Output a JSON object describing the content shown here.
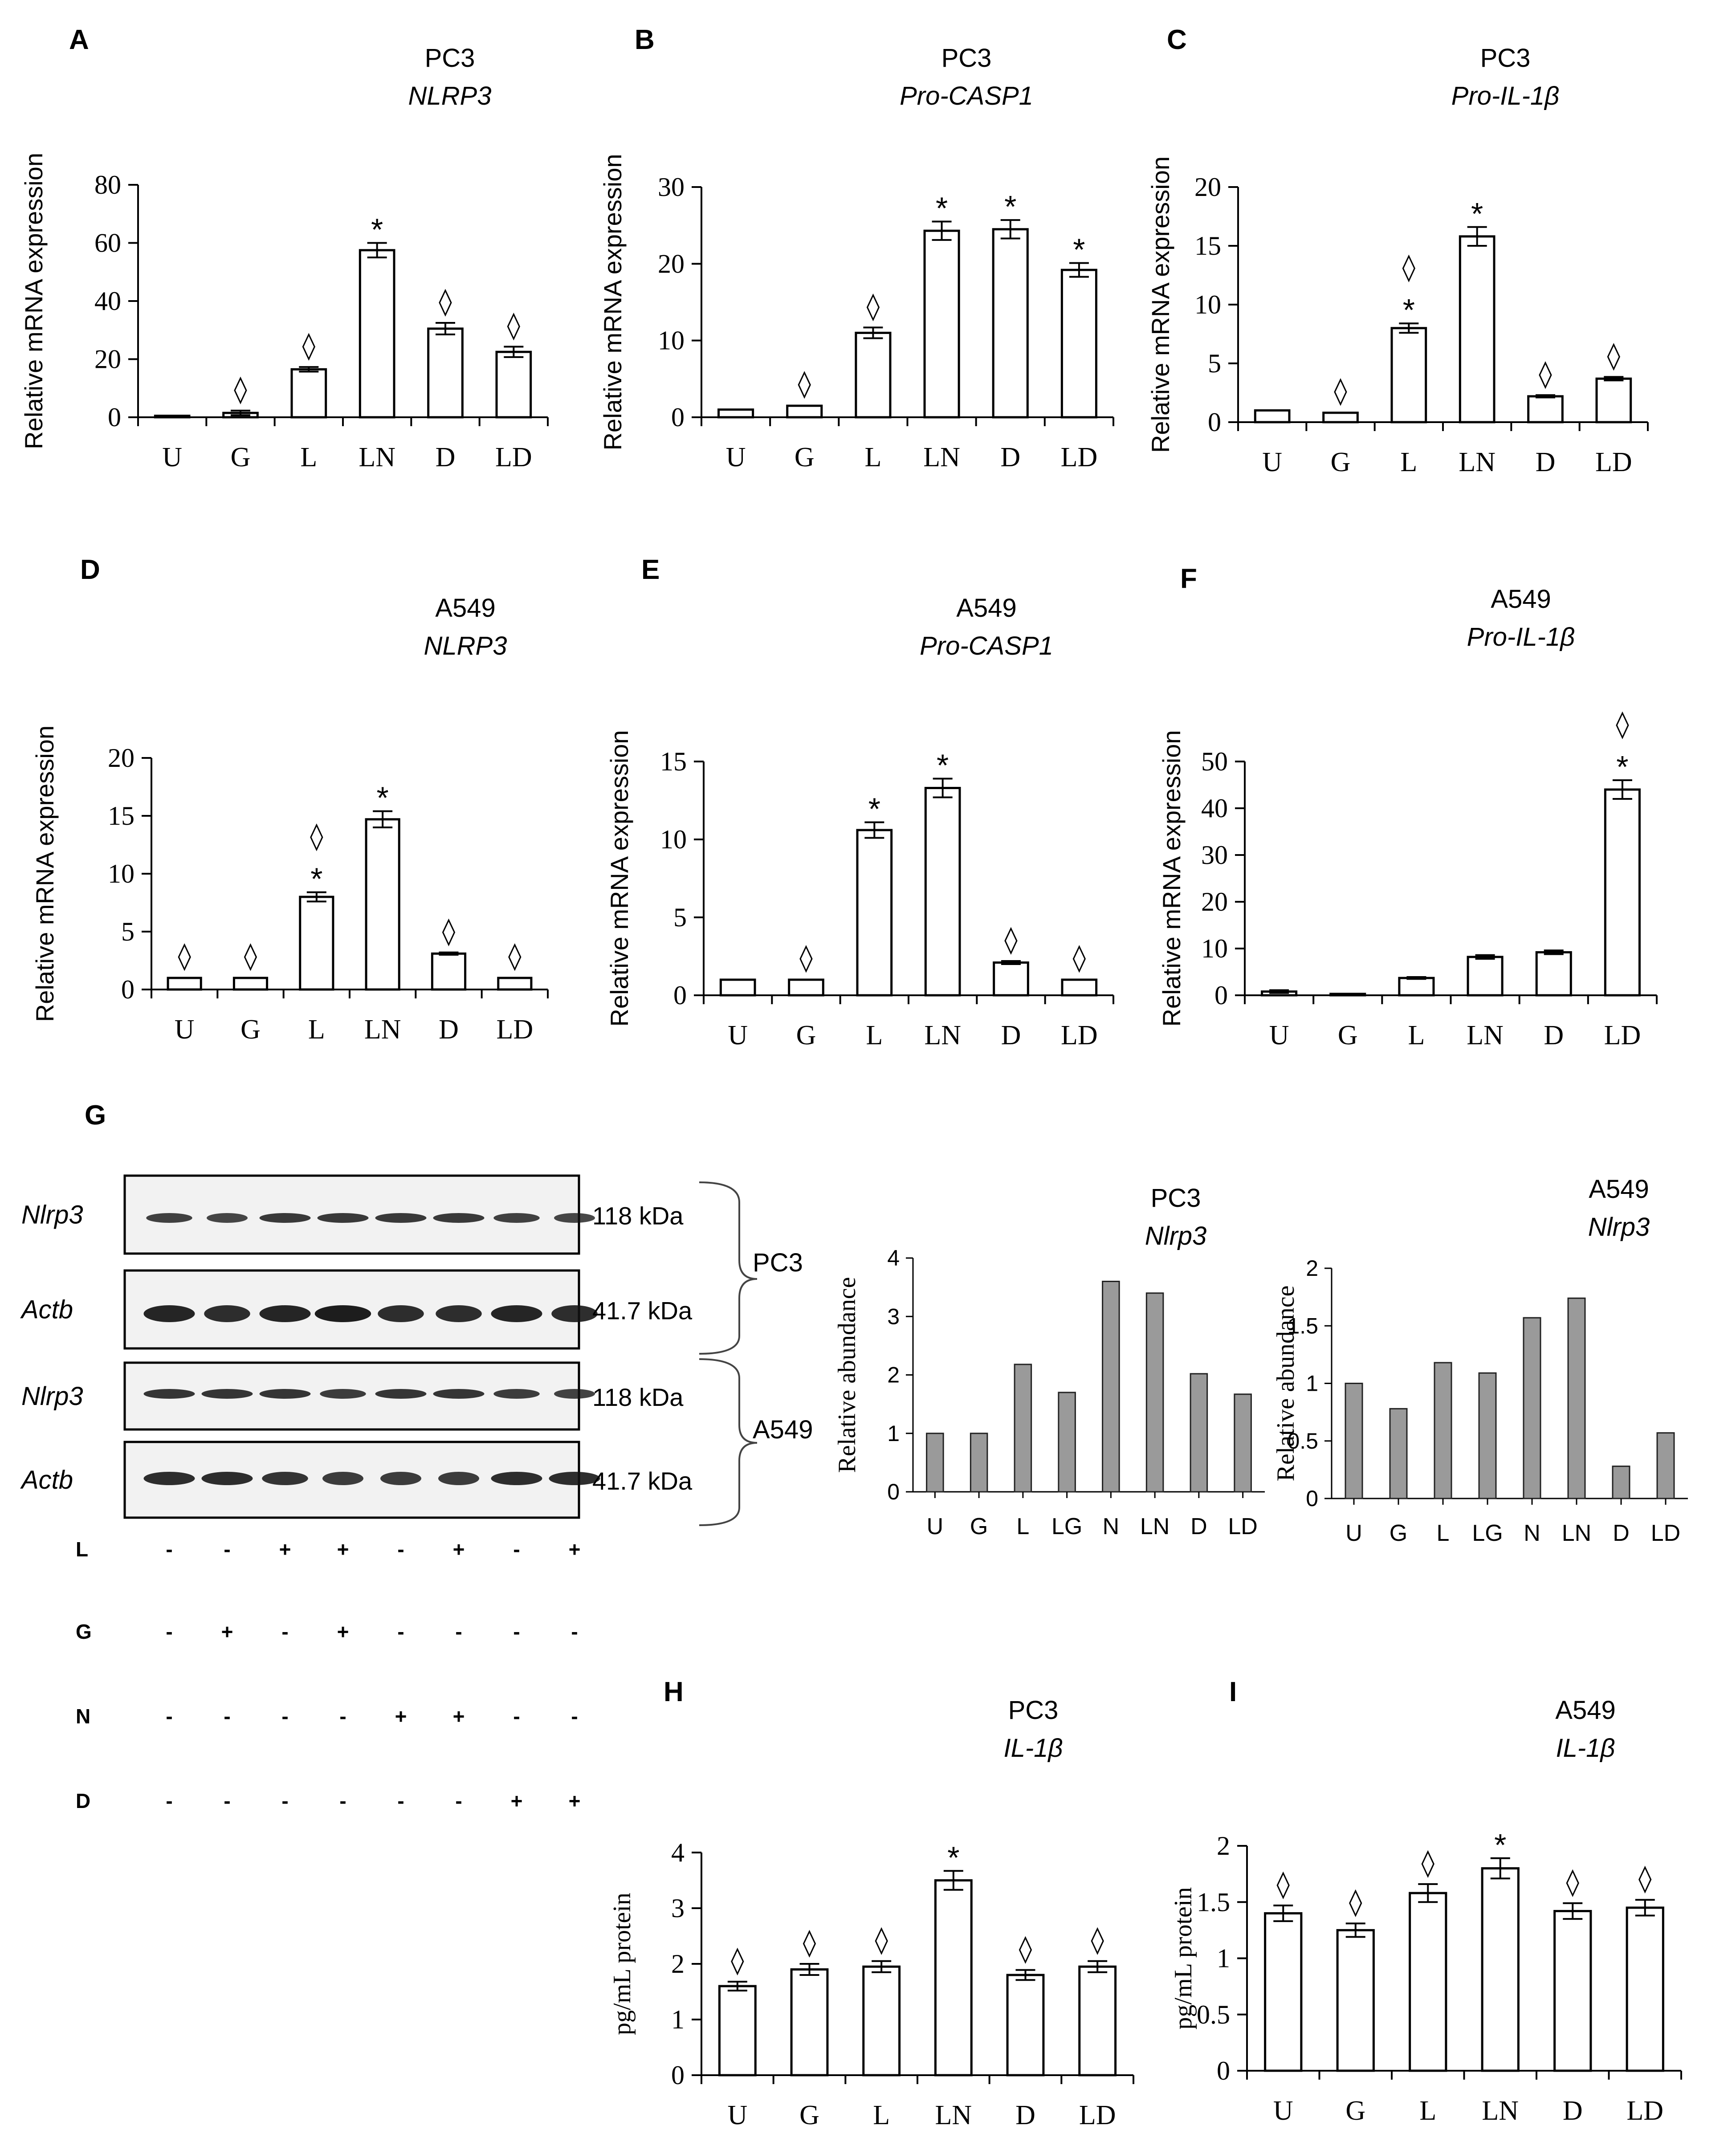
{
  "bar_panels": [
    {
      "id": "A",
      "cell": "PC3",
      "gene": "NLRP3",
      "ylabel": "Relative mRNA expression",
      "ylim": [
        0,
        80
      ],
      "yticks": [
        0,
        20,
        40,
        60,
        80
      ],
      "categories": [
        "U",
        "G",
        "L",
        "LN",
        "D",
        "LD"
      ],
      "values": [
        0.5,
        1.5,
        16.5,
        57.5,
        30.5,
        22.5
      ],
      "errors": [
        0.3,
        0.8,
        0.8,
        2.5,
        2.0,
        1.8
      ],
      "star": [
        false,
        false,
        false,
        true,
        false,
        false
      ],
      "diamond": [
        false,
        true,
        true,
        false,
        true,
        true
      ]
    },
    {
      "id": "B",
      "cell": "PC3",
      "gene": "Pro-CASP1",
      "ylabel": "Relative mRNA expression",
      "ylim": [
        0,
        30
      ],
      "yticks": [
        0,
        10,
        20,
        30
      ],
      "categories": [
        "U",
        "G",
        "L",
        "LN",
        "D",
        "LD"
      ],
      "values": [
        1,
        1.5,
        11,
        24.3,
        24.5,
        19.2
      ],
      "errors": [
        0.1,
        0.1,
        0.7,
        1.2,
        1.2,
        0.9
      ],
      "star": [
        false,
        false,
        false,
        true,
        true,
        true
      ],
      "diamond": [
        false,
        true,
        true,
        false,
        false,
        false
      ]
    },
    {
      "id": "C",
      "cell": "PC3",
      "gene": "Pro-IL-1β",
      "ylabel": "Relative mRNA expression",
      "ylim": [
        0,
        20
      ],
      "yticks": [
        0,
        5,
        10,
        15,
        20
      ],
      "categories": [
        "U",
        "G",
        "L",
        "LN",
        "D",
        "LD"
      ],
      "values": [
        1,
        0.8,
        8,
        15.8,
        2.2,
        3.7
      ],
      "errors": [
        0.05,
        0.05,
        0.4,
        0.8,
        0.1,
        0.15
      ],
      "star": [
        false,
        false,
        true,
        true,
        false,
        false
      ],
      "diamond": [
        false,
        true,
        true,
        false,
        true,
        true
      ]
    },
    {
      "id": "D",
      "cell": "A549",
      "gene": "NLRP3",
      "ylabel": "Relative mRNA expression",
      "ylim": [
        0,
        20
      ],
      "yticks": [
        0,
        5,
        10,
        15,
        20
      ],
      "categories": [
        "U",
        "G",
        "L",
        "LN",
        "D",
        "LD"
      ],
      "values": [
        1,
        1,
        8,
        14.7,
        3.1,
        1
      ],
      "errors": [
        0.05,
        0.05,
        0.4,
        0.7,
        0.1,
        0.05
      ],
      "star": [
        false,
        false,
        true,
        true,
        false,
        false
      ],
      "diamond": [
        true,
        true,
        true,
        false,
        true,
        true
      ]
    },
    {
      "id": "E",
      "cell": "A549",
      "gene": "Pro-CASP1",
      "ylabel": "Relative mRNA expression",
      "ylim": [
        0,
        15
      ],
      "yticks": [
        0,
        5,
        10,
        15
      ],
      "categories": [
        "U",
        "G",
        "L",
        "LN",
        "D",
        "LD"
      ],
      "values": [
        1,
        1,
        10.6,
        13.3,
        2.1,
        1
      ],
      "errors": [
        0.05,
        0.05,
        0.5,
        0.6,
        0.1,
        0.05
      ],
      "star": [
        false,
        false,
        true,
        true,
        false,
        false
      ],
      "diamond": [
        false,
        true,
        false,
        false,
        true,
        true
      ]
    },
    {
      "id": "F",
      "cell": "A549",
      "gene": "Pro-IL-1β",
      "ylabel": "Relative mRNA expression",
      "ylim": [
        0,
        50
      ],
      "yticks": [
        0,
        10,
        20,
        30,
        40,
        50
      ],
      "categories": [
        "U",
        "G",
        "L",
        "LN",
        "D",
        "LD"
      ],
      "values": [
        0.8,
        0.3,
        3.7,
        8.2,
        9.2,
        44
      ],
      "errors": [
        0.3,
        0.1,
        0.2,
        0.4,
        0.4,
        2.0
      ],
      "star": [
        false,
        false,
        false,
        false,
        false,
        true
      ],
      "diamond": [
        false,
        false,
        false,
        false,
        false,
        true
      ]
    },
    {
      "id": "H",
      "cell": "PC3",
      "gene": "IL-1β",
      "ylabel": "pg/mL protein",
      "ylim": [
        0,
        4
      ],
      "yticks": [
        0,
        1,
        2,
        3,
        4
      ],
      "categories": [
        "U",
        "G",
        "L",
        "LN",
        "D",
        "LD"
      ],
      "values": [
        1.6,
        1.9,
        1.95,
        3.5,
        1.8,
        1.95
      ],
      "errors": [
        0.08,
        0.1,
        0.1,
        0.17,
        0.09,
        0.1
      ],
      "star": [
        false,
        false,
        false,
        true,
        false,
        false
      ],
      "diamond": [
        true,
        true,
        true,
        false,
        true,
        true
      ]
    },
    {
      "id": "I",
      "cell": "A549",
      "gene": "IL-1β",
      "ylabel": "pg/mL protein",
      "ylim": [
        0,
        2
      ],
      "yticks": [
        0,
        0.5,
        1,
        1.5,
        2
      ],
      "categories": [
        "U",
        "G",
        "L",
        "LN",
        "D",
        "LD"
      ],
      "values": [
        1.4,
        1.25,
        1.58,
        1.8,
        1.42,
        1.45
      ],
      "errors": [
        0.07,
        0.06,
        0.08,
        0.09,
        0.07,
        0.07
      ],
      "star": [
        false,
        false,
        false,
        true,
        false,
        false
      ],
      "diamond": [
        true,
        true,
        true,
        false,
        true,
        true
      ]
    }
  ],
  "abundance_panels": [
    {
      "cell": "PC3",
      "gene": "Nlrp3",
      "ylabel": "Relative abundance",
      "ylim": [
        0,
        4
      ],
      "yticks": [
        0,
        1,
        2,
        3,
        4
      ],
      "categories": [
        "U",
        "G",
        "L",
        "LG",
        "N",
        "LN",
        "D",
        "LD"
      ],
      "values": [
        1,
        1,
        2.18,
        1.7,
        3.6,
        3.4,
        2.02,
        1.67
      ]
    },
    {
      "cell": "A549",
      "gene": "Nlrp3",
      "ylabel": "Relative abundance",
      "ylim": [
        0,
        2
      ],
      "yticks": [
        0,
        0.5,
        1,
        1.5,
        2
      ],
      "categories": [
        "U",
        "G",
        "L",
        "LG",
        "N",
        "LN",
        "D",
        "LD"
      ],
      "values": [
        1,
        0.78,
        1.18,
        1.09,
        1.57,
        1.74,
        0.28,
        0.57
      ]
    }
  ],
  "panel_g": {
    "letter": "G",
    "blots": [
      {
        "label": "Nlrp3",
        "kda": "118 kDa"
      },
      {
        "label": "Actb",
        "kda": "41.7 kDa"
      },
      {
        "label": "Nlrp3",
        "kda": "118 kDa"
      },
      {
        "label": "Actb",
        "kda": "41.7 kDa"
      }
    ],
    "cell_lines": [
      "PC3",
      "A549"
    ],
    "treatments": [
      {
        "name": "L",
        "signs": [
          "-",
          "-",
          "+",
          "+",
          "-",
          "+",
          "-",
          "+"
        ]
      },
      {
        "name": "G",
        "signs": [
          "-",
          "+",
          "-",
          "+",
          "-",
          "-",
          "-",
          "-"
        ]
      },
      {
        "name": "N",
        "signs": [
          "-",
          "-",
          "-",
          "-",
          "+",
          "+",
          "-",
          "-"
        ]
      },
      {
        "name": "D",
        "signs": [
          "-",
          "-",
          "-",
          "-",
          "-",
          "-",
          "+",
          "+"
        ]
      }
    ]
  },
  "symbols": {
    "star": "*",
    "diamond": "◊"
  },
  "chart_data": [
    {
      "type": "bar",
      "title": "A: PC3 NLRP3",
      "categories": [
        "U",
        "G",
        "L",
        "LN",
        "D",
        "LD"
      ],
      "values": [
        0.5,
        1.5,
        16.5,
        57.5,
        30.5,
        22.5
      ],
      "ylabel": "Relative mRNA expression",
      "ylim": [
        0,
        80
      ]
    },
    {
      "type": "bar",
      "title": "B: PC3 Pro-CASP1",
      "categories": [
        "U",
        "G",
        "L",
        "LN",
        "D",
        "LD"
      ],
      "values": [
        1,
        1.5,
        11,
        24.3,
        24.5,
        19.2
      ],
      "ylabel": "Relative mRNA expression",
      "ylim": [
        0,
        30
      ]
    },
    {
      "type": "bar",
      "title": "C: PC3 Pro-IL-1β",
      "categories": [
        "U",
        "G",
        "L",
        "LN",
        "D",
        "LD"
      ],
      "values": [
        1,
        0.8,
        8,
        15.8,
        2.2,
        3.7
      ],
      "ylabel": "Relative mRNA expression",
      "ylim": [
        0,
        20
      ]
    },
    {
      "type": "bar",
      "title": "D: A549 NLRP3",
      "categories": [
        "U",
        "G",
        "L",
        "LN",
        "D",
        "LD"
      ],
      "values": [
        1,
        1,
        8,
        14.7,
        3.1,
        1
      ],
      "ylabel": "Relative mRNA expression",
      "ylim": [
        0,
        20
      ]
    },
    {
      "type": "bar",
      "title": "E: A549 Pro-CASP1",
      "categories": [
        "U",
        "G",
        "L",
        "LN",
        "D",
        "LD"
      ],
      "values": [
        1,
        1,
        10.6,
        13.3,
        2.1,
        1
      ],
      "ylabel": "Relative mRNA expression",
      "ylim": [
        0,
        15
      ]
    },
    {
      "type": "bar",
      "title": "F: A549 Pro-IL-1β",
      "categories": [
        "U",
        "G",
        "L",
        "LN",
        "D",
        "LD"
      ],
      "values": [
        0.8,
        0.3,
        3.7,
        8.2,
        9.2,
        44
      ],
      "ylabel": "Relative mRNA expression",
      "ylim": [
        0,
        50
      ]
    },
    {
      "type": "bar",
      "title": "G: PC3 Nlrp3",
      "categories": [
        "U",
        "G",
        "L",
        "LG",
        "N",
        "LN",
        "D",
        "LD"
      ],
      "values": [
        1,
        1,
        2.18,
        1.7,
        3.6,
        3.4,
        2.02,
        1.67
      ],
      "ylabel": "Relative abundance",
      "ylim": [
        0,
        4
      ]
    },
    {
      "type": "bar",
      "title": "G: A549 Nlrp3",
      "categories": [
        "U",
        "G",
        "L",
        "LG",
        "N",
        "LN",
        "D",
        "LD"
      ],
      "values": [
        1,
        0.78,
        1.18,
        1.09,
        1.57,
        1.74,
        0.28,
        0.57
      ],
      "ylabel": "Relative abundance",
      "ylim": [
        0,
        2
      ]
    },
    {
      "type": "bar",
      "title": "H: PC3 IL-1β",
      "categories": [
        "U",
        "G",
        "L",
        "LN",
        "D",
        "LD"
      ],
      "values": [
        1.6,
        1.9,
        1.95,
        3.5,
        1.8,
        1.95
      ],
      "ylabel": "pg/mL protein",
      "ylim": [
        0,
        4
      ]
    },
    {
      "type": "bar",
      "title": "I: A549 IL-1β",
      "categories": [
        "U",
        "G",
        "L",
        "LN",
        "D",
        "LD"
      ],
      "values": [
        1.4,
        1.25,
        1.58,
        1.8,
        1.42,
        1.45
      ],
      "ylabel": "pg/mL protein",
      "ylim": [
        0,
        2
      ]
    }
  ]
}
